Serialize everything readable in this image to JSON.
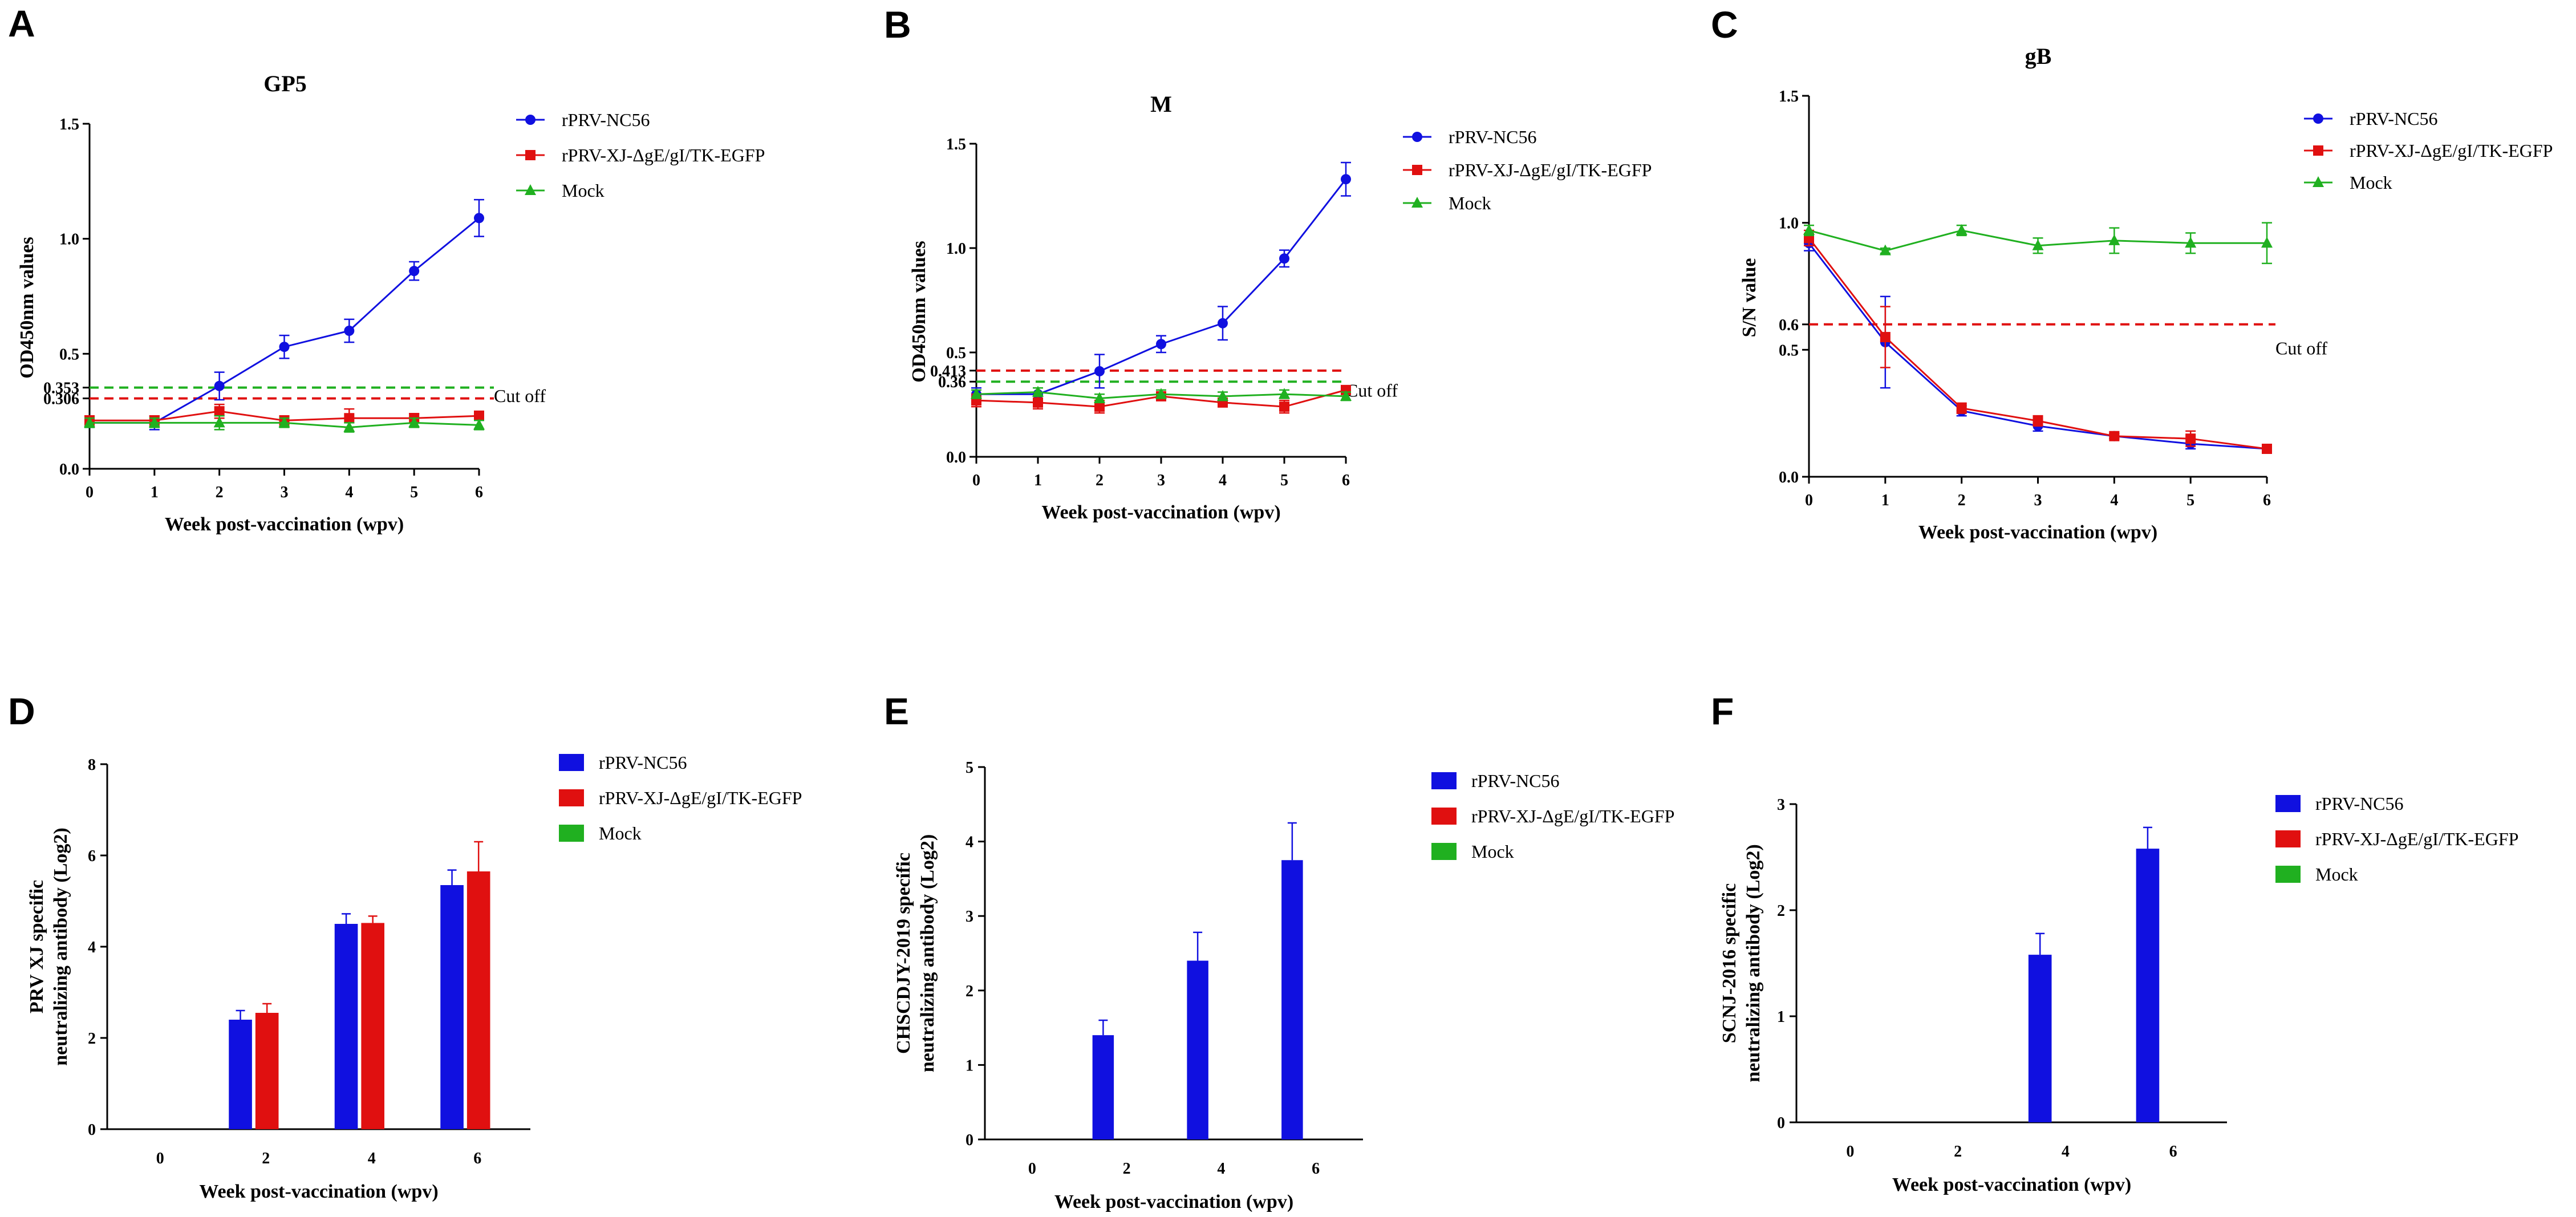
{
  "colors": {
    "nc56": "#1010e0",
    "xj": "#e01010",
    "mock": "#20b020"
  },
  "panels": [
    {
      "letter": "A"
    },
    {
      "letter": "B"
    },
    {
      "letter": "C"
    },
    {
      "letter": "D"
    },
    {
      "letter": "E"
    },
    {
      "letter": "F"
    }
  ],
  "chart_data": [
    {
      "id": "A",
      "type": "line",
      "title": "GP5",
      "xlabel": "Week post-vaccination (wpv)",
      "ylabel": "OD450nm values",
      "x": [
        0,
        1,
        2,
        3,
        4,
        5,
        6
      ],
      "xticks": [
        "0",
        "1",
        "2",
        "3",
        "4",
        "5",
        "6"
      ],
      "xlim": [
        0,
        6
      ],
      "ylim": [
        0,
        1.5
      ],
      "yticks": [
        {
          "v": 0,
          "t": "0.0"
        },
        {
          "v": 0.306,
          "t": "0.306"
        },
        {
          "v": 0.353,
          "t": "0.353"
        },
        {
          "v": 0.5,
          "t": "0.5"
        },
        {
          "v": 1.0,
          "t": "1.0"
        },
        {
          "v": 1.5,
          "t": "1.5"
        }
      ],
      "cutoffs": [
        {
          "value": 0.353,
          "color": "#20b020"
        },
        {
          "value": 0.306,
          "color": "#e01010"
        }
      ],
      "cutoff_label": "Cut off",
      "cutoff_label_value": 0.31,
      "legend_position": "top-right",
      "series": [
        {
          "name": "rPRV-NC56",
          "color": "#1010e0",
          "marker": "circle",
          "values": [
            0.2,
            0.2,
            0.36,
            0.53,
            0.6,
            0.86,
            1.09
          ],
          "errors": [
            0.02,
            0.03,
            0.06,
            0.05,
            0.05,
            0.04,
            0.08
          ]
        },
        {
          "name": "rPRV-XJ-ΔgE/gI/TK-EGFP",
          "color": "#e01010",
          "marker": "square",
          "values": [
            0.21,
            0.21,
            0.25,
            0.21,
            0.22,
            0.22,
            0.23
          ],
          "errors": [
            0.02,
            0.02,
            0.03,
            0.02,
            0.04,
            0.02,
            0.02
          ]
        },
        {
          "name": "Mock",
          "color": "#20b020",
          "marker": "triangle",
          "values": [
            0.2,
            0.2,
            0.2,
            0.2,
            0.18,
            0.2,
            0.19
          ],
          "errors": [
            0.02,
            0.02,
            0.03,
            0.02,
            0.02,
            0.02,
            0.02
          ]
        }
      ]
    },
    {
      "id": "B",
      "type": "line",
      "title": "M",
      "xlabel": "Week post-vaccination (wpv)",
      "ylabel": "OD450nm values",
      "x": [
        0,
        1,
        2,
        3,
        4,
        5,
        6
      ],
      "xticks": [
        "0",
        "1",
        "2",
        "3",
        "4",
        "5",
        "6"
      ],
      "xlim": [
        0,
        6
      ],
      "ylim": [
        0,
        1.5
      ],
      "yticks": [
        {
          "v": 0,
          "t": "0.0"
        },
        {
          "v": 0.36,
          "t": "0.36"
        },
        {
          "v": 0.413,
          "t": "0.413"
        },
        {
          "v": 0.5,
          "t": "0.5"
        },
        {
          "v": 1.0,
          "t": "1.0"
        },
        {
          "v": 1.5,
          "t": "1.5"
        }
      ],
      "cutoffs": [
        {
          "value": 0.413,
          "color": "#e01010"
        },
        {
          "value": 0.36,
          "color": "#20b020"
        }
      ],
      "cutoff_label": "Cut off",
      "cutoff_label_value": 0.31,
      "legend_position": "top-right",
      "series": [
        {
          "name": "rPRV-NC56",
          "color": "#1010e0",
          "marker": "circle",
          "values": [
            0.3,
            0.3,
            0.41,
            0.54,
            0.64,
            0.95,
            1.33
          ],
          "errors": [
            0.03,
            0.03,
            0.08,
            0.04,
            0.08,
            0.04,
            0.08
          ]
        },
        {
          "name": "rPRV-XJ-ΔgE/gI/TK-EGFP",
          "color": "#e01010",
          "marker": "square",
          "values": [
            0.27,
            0.26,
            0.24,
            0.29,
            0.26,
            0.24,
            0.32
          ],
          "errors": [
            0.03,
            0.03,
            0.03,
            0.02,
            0.02,
            0.03,
            0.02
          ]
        },
        {
          "name": "Mock",
          "color": "#20b020",
          "marker": "triangle",
          "values": [
            0.3,
            0.31,
            0.28,
            0.3,
            0.29,
            0.3,
            0.29
          ],
          "errors": [
            0.02,
            0.02,
            0.02,
            0.02,
            0.02,
            0.02,
            0.02
          ]
        }
      ]
    },
    {
      "id": "C",
      "type": "line",
      "title": "gB",
      "xlabel": "Week post-vaccination (wpv)",
      "ylabel": "S/N value",
      "x": [
        0,
        1,
        2,
        3,
        4,
        5,
        6
      ],
      "xticks": [
        "0",
        "1",
        "2",
        "3",
        "4",
        "5",
        "6"
      ],
      "xlim": [
        0,
        6
      ],
      "ylim": [
        0,
        1.5
      ],
      "yticks": [
        {
          "v": 0,
          "t": "0.0"
        },
        {
          "v": 0.5,
          "t": "0.5"
        },
        {
          "v": 0.6,
          "t": "0.6"
        },
        {
          "v": 1.0,
          "t": "1.0"
        },
        {
          "v": 1.5,
          "t": "1.5"
        }
      ],
      "cutoffs": [
        {
          "value": 0.6,
          "color": "#e01010"
        }
      ],
      "cutoff_label": "Cut off",
      "cutoff_label_value": 0.5,
      "legend_position": "top-right",
      "series": [
        {
          "name": "rPRV-NC56",
          "color": "#1010e0",
          "marker": "circle",
          "values": [
            0.92,
            0.53,
            0.26,
            0.2,
            0.16,
            0.13,
            0.11
          ],
          "errors": [
            0.03,
            0.18,
            0.02,
            0.02,
            0.01,
            0.02,
            0.01
          ]
        },
        {
          "name": "rPRV-XJ-ΔgE/gI/TK-EGFP",
          "color": "#e01010",
          "marker": "square",
          "values": [
            0.94,
            0.55,
            0.27,
            0.22,
            0.16,
            0.15,
            0.11
          ],
          "errors": [
            0.03,
            0.12,
            0.02,
            0.02,
            0.01,
            0.03,
            0.01
          ]
        },
        {
          "name": "Mock",
          "color": "#20b020",
          "marker": "triangle",
          "values": [
            0.97,
            0.89,
            0.97,
            0.91,
            0.93,
            0.92,
            0.92
          ],
          "errors": [
            0.02,
            0.01,
            0.02,
            0.03,
            0.05,
            0.04,
            0.08
          ]
        }
      ]
    },
    {
      "id": "D",
      "type": "bar",
      "title": "",
      "xlabel": "Week post-vaccination (wpv)",
      "ylabel": [
        "PRV XJ  specific",
        "neutralizing antibody (Log2)"
      ],
      "categories": [
        "0",
        "2",
        "4",
        "6"
      ],
      "ylim": [
        0,
        8
      ],
      "yticks": [
        {
          "v": 0,
          "t": "0"
        },
        {
          "v": 2,
          "t": "2"
        },
        {
          "v": 4,
          "t": "4"
        },
        {
          "v": 6,
          "t": "6"
        },
        {
          "v": 8,
          "t": "8"
        }
      ],
      "legend_position": "top-right",
      "series": [
        {
          "name": "rPRV-NC56",
          "color": "#1010e0",
          "values": [
            0,
            2.4,
            4.5,
            5.35
          ],
          "errors": [
            0,
            0.2,
            0.22,
            0.33
          ]
        },
        {
          "name": "rPRV-XJ-ΔgE/gI/TK-EGFP",
          "color": "#e01010",
          "values": [
            0,
            2.55,
            4.52,
            5.65
          ],
          "errors": [
            0,
            0.2,
            0.15,
            0.65
          ]
        },
        {
          "name": "Mock",
          "color": "#20b020",
          "values": [
            0,
            0,
            0,
            0
          ],
          "errors": [
            0,
            0,
            0,
            0
          ]
        }
      ]
    },
    {
      "id": "E",
      "type": "bar",
      "title": "",
      "xlabel": "Week post-vaccination (wpv)",
      "ylabel": [
        "CHSCDJY-2019 specific",
        "neutralizing antibody (Log2)"
      ],
      "categories": [
        "0",
        "2",
        "4",
        "6"
      ],
      "ylim": [
        0,
        5
      ],
      "yticks": [
        {
          "v": 0,
          "t": "0"
        },
        {
          "v": 1,
          "t": "1"
        },
        {
          "v": 2,
          "t": "2"
        },
        {
          "v": 3,
          "t": "3"
        },
        {
          "v": 4,
          "t": "4"
        },
        {
          "v": 5,
          "t": "5"
        }
      ],
      "legend_position": "top-right",
      "series": [
        {
          "name": "rPRV-NC56",
          "color": "#1010e0",
          "values": [
            0,
            1.4,
            2.4,
            3.75
          ],
          "errors": [
            0,
            0.2,
            0.38,
            0.5
          ]
        },
        {
          "name": "rPRV-XJ-ΔgE/gI/TK-EGFP",
          "color": "#e01010",
          "values": [
            0,
            0,
            0,
            0
          ],
          "errors": [
            0,
            0,
            0,
            0
          ]
        },
        {
          "name": "Mock",
          "color": "#20b020",
          "values": [
            0,
            0,
            0,
            0
          ],
          "errors": [
            0,
            0,
            0,
            0
          ]
        }
      ]
    },
    {
      "id": "F",
      "type": "bar",
      "title": "",
      "xlabel": "Week post-vaccination (wpv)",
      "ylabel": [
        "SCNJ-2016 specific",
        "neutralizing antibody (Log2)"
      ],
      "categories": [
        "0",
        "2",
        "4",
        "6"
      ],
      "ylim": [
        0,
        3
      ],
      "yticks": [
        {
          "v": 0,
          "t": "0"
        },
        {
          "v": 1,
          "t": "1"
        },
        {
          "v": 2,
          "t": "2"
        },
        {
          "v": 3,
          "t": "3"
        }
      ],
      "legend_position": "top-right",
      "series": [
        {
          "name": "rPRV-NC56",
          "color": "#1010e0",
          "values": [
            0,
            0,
            1.58,
            2.58
          ],
          "errors": [
            0,
            0,
            0.2,
            0.2
          ]
        },
        {
          "name": "rPRV-XJ-ΔgE/gI/TK-EGFP",
          "color": "#e01010",
          "values": [
            0,
            0,
            0,
            0
          ],
          "errors": [
            0,
            0,
            0,
            0
          ]
        },
        {
          "name": "Mock",
          "color": "#20b020",
          "values": [
            0,
            0,
            0,
            0
          ],
          "errors": [
            0,
            0,
            0,
            0
          ]
        }
      ]
    }
  ]
}
